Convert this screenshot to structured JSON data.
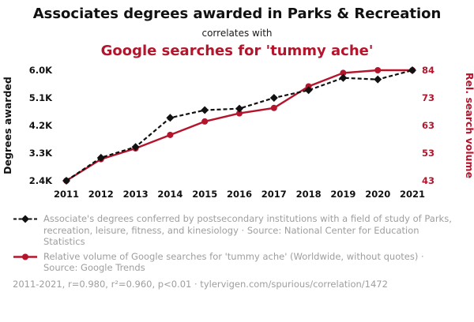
{
  "header": {
    "title": "Associates degrees awarded in Parks & Recreation",
    "subtitle": "correlates with",
    "title2": "Google searches for 'tummy ache'"
  },
  "chart_data": {
    "type": "line",
    "x": [
      "2011",
      "2012",
      "2013",
      "2014",
      "2015",
      "2016",
      "2017",
      "2018",
      "2019",
      "2020",
      "2021"
    ],
    "series": [
      {
        "name": "Associate's degrees awarded in Parks & Recreation",
        "axis": "left",
        "color": "#111111",
        "style": "dashed-diamond",
        "values": [
          2400,
          3150,
          3500,
          4450,
          4700,
          4750,
          5100,
          5350,
          5750,
          5700,
          6000
        ]
      },
      {
        "name": "Google searches for 'tummy ache'",
        "axis": "right",
        "color": "#b4152c",
        "style": "solid-circle",
        "values": [
          43,
          51,
          55,
          60,
          65,
          68,
          70,
          78,
          83,
          84,
          84
        ]
      }
    ],
    "left_axis": {
      "label": "Degrees awarded",
      "ticks": [
        "6.0K",
        "5.1K",
        "4.2K",
        "3.3K",
        "2.4K"
      ],
      "min": 2400,
      "max": 6000
    },
    "right_axis": {
      "label": "Rel. search volume",
      "ticks": [
        "84",
        "73",
        "63",
        "53",
        "43"
      ],
      "min": 43,
      "max": 84
    },
    "grid": false,
    "legend_position": "below"
  },
  "legend": {
    "series1": "Associate's degrees conferred by postsecondary institutions with a field of study of Parks, recreation, leisure, fitness, and kinesiology · Source: National Center for Education Statistics",
    "series2": "Relative volume of Google searches for 'tummy ache' (Worldwide, without quotes) · Source: Google Trends"
  },
  "footer": {
    "stats": "2011-2021, r=0.980, r²=0.960, p<0.01 · tylervigen.com/spurious/correlation/1472"
  },
  "colors": {
    "accent_red": "#b4152c",
    "text_gray": "#9e9e9e",
    "black": "#111111"
  }
}
